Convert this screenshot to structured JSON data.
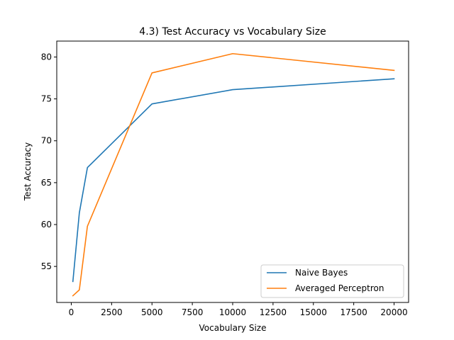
{
  "chart_data": {
    "type": "line",
    "title": "4.3) Test Accuracy vs Vocabulary Size",
    "xlabel": "Vocabulary Size",
    "ylabel": "Test Accuracy",
    "xlim": [
      -900,
      20900
    ],
    "ylim": [
      50.7,
      81.9
    ],
    "xticks": [
      0,
      2500,
      5000,
      7500,
      10000,
      12500,
      15000,
      17500,
      20000
    ],
    "xtick_labels": [
      "0",
      "2500",
      "5000",
      "7500",
      "10000",
      "12500",
      "15000",
      "17500",
      "20000"
    ],
    "yticks": [
      55,
      60,
      65,
      70,
      75,
      80
    ],
    "ytick_labels": [
      "55",
      "60",
      "65",
      "70",
      "75",
      "80"
    ],
    "grid": false,
    "legend_position": "lower-right",
    "series": [
      {
        "name": "Naive Bayes",
        "color": "#1f77b4",
        "x": [
          100,
          500,
          1000,
          5000,
          10000,
          20000
        ],
        "y": [
          53.2,
          61.4,
          66.8,
          74.4,
          76.1,
          77.4
        ]
      },
      {
        "name": "Averaged Perceptron",
        "color": "#ff7f0e",
        "x": [
          100,
          500,
          1000,
          5000,
          10000,
          20000
        ],
        "y": [
          51.5,
          52.2,
          59.8,
          78.1,
          80.4,
          78.4
        ]
      }
    ]
  }
}
